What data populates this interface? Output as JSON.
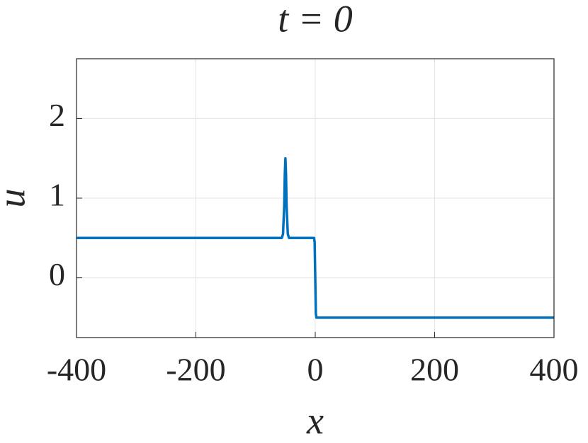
{
  "chart_data": {
    "type": "line",
    "title": "t = 0",
    "xlabel": "x",
    "ylabel": "u",
    "x": [
      -400,
      -60,
      -56,
      -54,
      -52,
      -51,
      -50,
      -49,
      -48,
      -46,
      -44,
      -40,
      -2,
      -1,
      0,
      1,
      2,
      4,
      400
    ],
    "series": [
      {
        "name": "u",
        "color": "#0072bd",
        "values": [
          0.5,
          0.5,
          0.5,
          0.55,
          0.9,
          1.3,
          1.5,
          1.3,
          0.9,
          0.55,
          0.5,
          0.5,
          0.5,
          0.45,
          0,
          -0.45,
          -0.5,
          -0.5,
          -0.5
        ]
      }
    ],
    "xlim": [
      -400,
      400
    ],
    "xticks": [
      -400,
      -200,
      0,
      200,
      400
    ],
    "ylim": [
      -0.75,
      2.75
    ],
    "yticks": [
      0,
      1,
      2
    ],
    "grid": true
  }
}
